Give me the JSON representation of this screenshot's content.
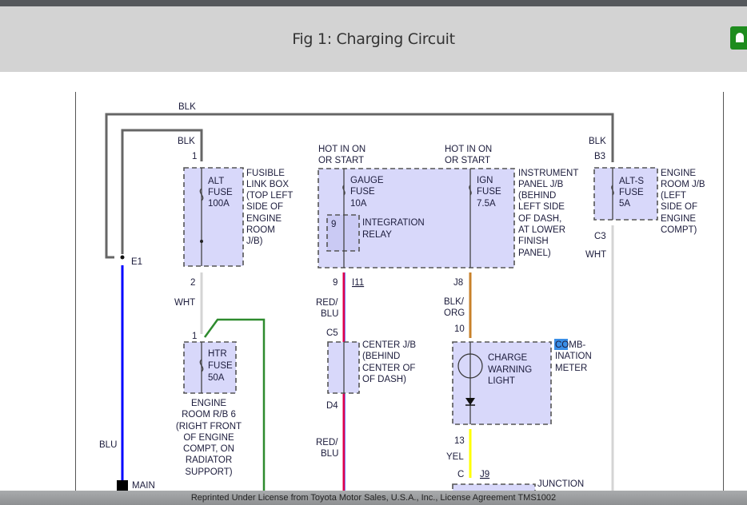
{
  "header": {
    "title": "Fig 1: Charging Circuit"
  },
  "footer": {
    "text": "Reprinted Under License from Toyota Motor Sales, U.S.A., Inc., License Agreement TMS1002"
  },
  "colors": {
    "blk": "#666666",
    "blu": "#0000ff",
    "wht": "#d0d0d0",
    "grn": "#2e8b2e",
    "red_blu": "#e0004a",
    "blk_org": "#c8812a",
    "yel": "#ffff00",
    "box_fill": "#d8d8fa",
    "highlight": "#3a8ee6"
  },
  "wires": {
    "blk_top": "BLK",
    "blk_inner": "BLK",
    "blk_alts": "BLK",
    "wht1": "WHT",
    "wht2": "WHT",
    "blu": "BLU",
    "yel": "YEL",
    "red_blu1": [
      "RED/",
      "BLU"
    ],
    "red_blu2": [
      "RED/",
      "BLU"
    ],
    "blk_org": [
      "BLK/",
      "ORG"
    ]
  },
  "pins": {
    "alt_in": "1",
    "alt_out": "2",
    "e1": "E1",
    "main": "MAIN",
    "htr_in": "1",
    "gauge_out": "9",
    "i11": "I11",
    "j8": "J8",
    "c5": "C5",
    "d4": "D4",
    "meter_in": "10",
    "meter_out": "13",
    "c": "C",
    "j9": "J9",
    "b3": "B3",
    "c3": "C3",
    "relay_pin": "9"
  },
  "hot": [
    [
      "HOT IN ON",
      "OR START"
    ],
    [
      "HOT IN ON",
      "OR START"
    ]
  ],
  "components": {
    "alt_fuse": [
      "ALT",
      "FUSE",
      "100A"
    ],
    "htr_fuse": [
      "HTR",
      "FUSE",
      "50A"
    ],
    "gauge_fuse": [
      "GAUGE",
      "FUSE",
      "10A"
    ],
    "ign_fuse": [
      "IGN",
      "FUSE",
      "7.5A"
    ],
    "relay": [
      "INTEGRATION",
      "RELAY"
    ],
    "alts_fuse": [
      "ALT-S",
      "FUSE",
      "5A"
    ],
    "charge_light": [
      "CHARGE",
      "WARNING",
      "LIGHT"
    ]
  },
  "locations": {
    "fusible_link": [
      "FUSIBLE",
      "LINK BOX",
      "(TOP LEFT",
      "SIDE OF",
      "ENGINE",
      "ROOM",
      "J/B)"
    ],
    "engine_rb6": [
      "ENGINE",
      "ROOM R/B 6",
      "(RIGHT FRONT",
      "OF ENGINE",
      "COMPT, ON",
      "RADIATOR",
      "SUPPORT)"
    ],
    "instrument_jb": [
      "INSTRUMENT",
      "PANEL J/B",
      "(BEHIND",
      "LEFT SIDE",
      "OF DASH,",
      "AT LOWER",
      "FINISH",
      "PANEL)"
    ],
    "center_jb": [
      "CENTER J/B",
      "(BEHIND",
      "CENTER OF",
      "OF DASH)"
    ],
    "engine_jb": [
      "ENGINE",
      "ROOM J/B",
      "(LEFT",
      "SIDE OF",
      "ENGINE",
      "COMPT)"
    ],
    "combination_meter": {
      "highlighted": "CO",
      "rest": "MB-",
      "lines": [
        "INATION",
        "METER"
      ]
    },
    "junction": "JUNCTION"
  }
}
